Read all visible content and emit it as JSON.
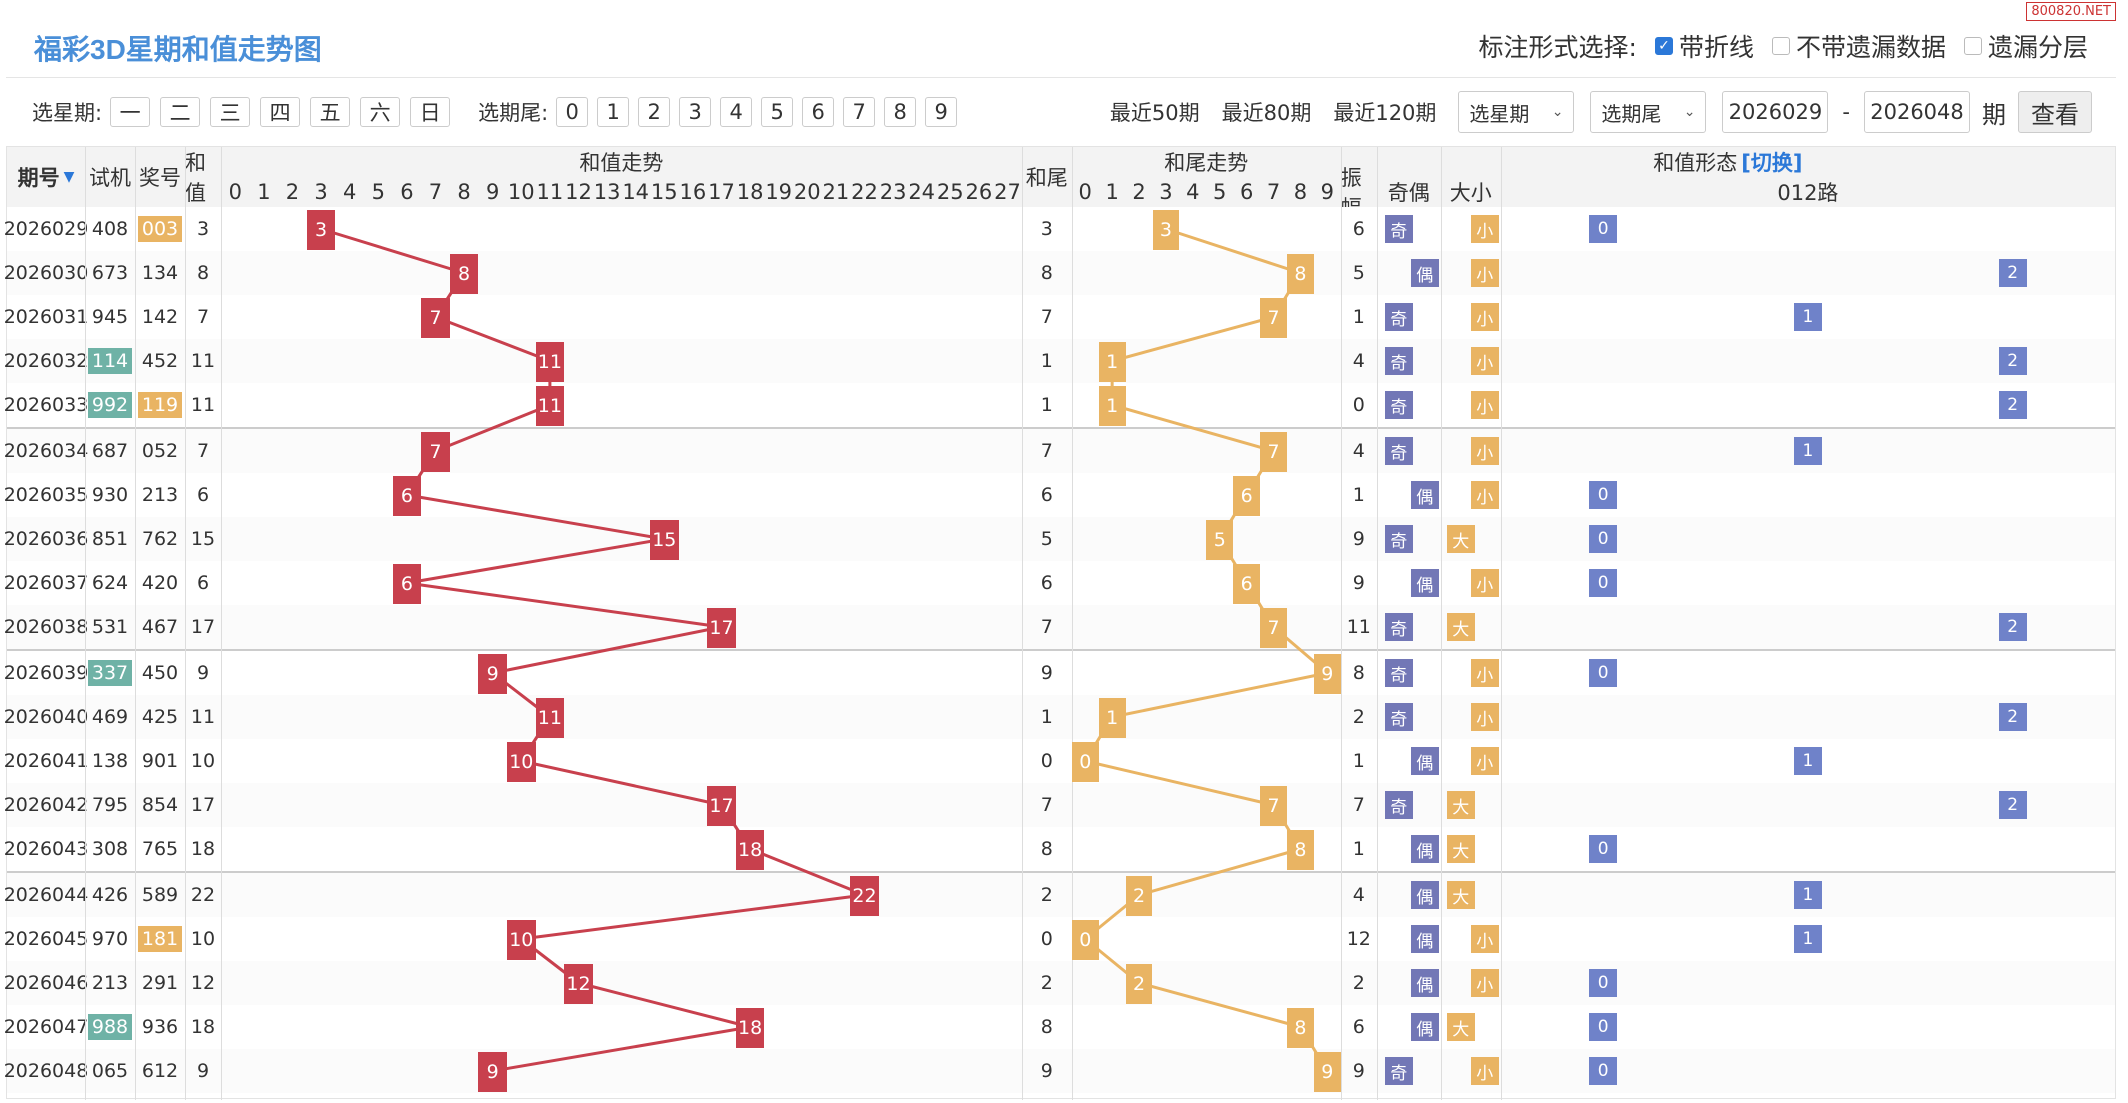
{
  "page": {
    "title": "福彩3D星期和值走势图",
    "watermark": "800820.NET"
  },
  "options": {
    "label": "标注形式选择:",
    "items": [
      {
        "label": "带折线",
        "checked": true
      },
      {
        "label": "不带遗漏数据",
        "checked": false
      },
      {
        "label": "遗漏分层",
        "checked": false
      }
    ]
  },
  "filters": {
    "week_label": "选星期:",
    "weekdays": [
      "一",
      "二",
      "三",
      "四",
      "五",
      "六",
      "日"
    ],
    "tail_label": "选期尾:",
    "tails": [
      "0",
      "1",
      "2",
      "3",
      "4",
      "5",
      "6",
      "7",
      "8",
      "9"
    ],
    "ranges": [
      "最近50期",
      "最近80期",
      "最近120期"
    ],
    "select_week": "选星期",
    "select_tail": "选期尾",
    "from": "2026029",
    "dash": "-",
    "to": "2026048",
    "qi": "期",
    "query": "查看"
  },
  "headers": {
    "issue": "期号",
    "trial": "试机",
    "award": "奖号",
    "sum": "和值",
    "sum_trend": "和值走势",
    "sum_tail": "和尾",
    "tail_trend": "和尾走势",
    "form": "和值形态",
    "switch": "[切换]",
    "amp": "振幅",
    "oddeven": "奇偶",
    "bigsmall": "大小",
    "road": "012路"
  },
  "colors": {
    "sum_hit": "#c8404d",
    "tail_hit": "#e9b463",
    "trial_green": "#6fb2a6",
    "award_orange": "#e9b463",
    "tag_odd": "#7277b6",
    "tag_even": "#7277b6",
    "tag_small": "#e9b463",
    "tag_big": "#e9b463",
    "road": "#6f82c9"
  },
  "chart_data": {
    "type": "table",
    "rows": [
      {
        "issue": "2026029",
        "trial": "408",
        "award": "003",
        "award_hl": true,
        "trial_hl": false,
        "sum": 3,
        "tail": 3,
        "amp": 6,
        "oe": "奇",
        "bs": "小",
        "road": 0
      },
      {
        "issue": "2026030",
        "trial": "673",
        "award": "134",
        "sum": 8,
        "tail": 8,
        "amp": 5,
        "oe": "偶",
        "bs": "小",
        "road": 2
      },
      {
        "issue": "2026031",
        "trial": "945",
        "award": "142",
        "sum": 7,
        "tail": 7,
        "amp": 1,
        "oe": "奇",
        "bs": "小",
        "road": 1
      },
      {
        "issue": "2026032",
        "trial": "114",
        "award": "452",
        "trial_hl": true,
        "sum": 11,
        "tail": 1,
        "amp": 4,
        "oe": "奇",
        "bs": "小",
        "road": 2
      },
      {
        "issue": "2026033",
        "trial": "992",
        "award": "119",
        "trial_hl": true,
        "award_hl": true,
        "sum": 11,
        "tail": 1,
        "amp": 0,
        "oe": "奇",
        "bs": "小",
        "road": 2
      },
      {
        "issue": "2026034",
        "trial": "687",
        "award": "052",
        "sum": 7,
        "tail": 7,
        "amp": 4,
        "oe": "奇",
        "bs": "小",
        "road": 1
      },
      {
        "issue": "2026035",
        "trial": "930",
        "award": "213",
        "sum": 6,
        "tail": 6,
        "amp": 1,
        "oe": "偶",
        "bs": "小",
        "road": 0
      },
      {
        "issue": "2026036",
        "trial": "851",
        "award": "762",
        "sum": 15,
        "tail": 5,
        "amp": 9,
        "oe": "奇",
        "bs": "大",
        "road": 0
      },
      {
        "issue": "2026037",
        "trial": "624",
        "award": "420",
        "sum": 6,
        "tail": 6,
        "amp": 9,
        "oe": "偶",
        "bs": "小",
        "road": 0
      },
      {
        "issue": "2026038",
        "trial": "531",
        "award": "467",
        "sum": 17,
        "tail": 7,
        "amp": 11,
        "oe": "奇",
        "bs": "大",
        "road": 2
      },
      {
        "issue": "2026039",
        "trial": "337",
        "award": "450",
        "trial_hl": true,
        "sum": 9,
        "tail": 9,
        "amp": 8,
        "oe": "奇",
        "bs": "小",
        "road": 0
      },
      {
        "issue": "2026040",
        "trial": "469",
        "award": "425",
        "sum": 11,
        "tail": 1,
        "amp": 2,
        "oe": "奇",
        "bs": "小",
        "road": 2
      },
      {
        "issue": "2026041",
        "trial": "138",
        "award": "901",
        "sum": 10,
        "tail": 0,
        "amp": 1,
        "oe": "偶",
        "bs": "小",
        "road": 1
      },
      {
        "issue": "2026042",
        "trial": "795",
        "award": "854",
        "sum": 17,
        "tail": 7,
        "amp": 7,
        "oe": "奇",
        "bs": "大",
        "road": 2
      },
      {
        "issue": "2026043",
        "trial": "308",
        "award": "765",
        "sum": 18,
        "tail": 8,
        "amp": 1,
        "oe": "偶",
        "bs": "大",
        "road": 0
      },
      {
        "issue": "2026044",
        "trial": "426",
        "award": "589",
        "sum": 22,
        "tail": 2,
        "amp": 4,
        "oe": "偶",
        "bs": "大",
        "road": 1
      },
      {
        "issue": "2026045",
        "trial": "970",
        "award": "181",
        "award_hl": true,
        "sum": 10,
        "tail": 0,
        "amp": 12,
        "oe": "偶",
        "bs": "小",
        "road": 1
      },
      {
        "issue": "2026046",
        "trial": "213",
        "award": "291",
        "sum": 12,
        "tail": 2,
        "amp": 2,
        "oe": "偶",
        "bs": "小",
        "road": 0
      },
      {
        "issue": "2026047",
        "trial": "988",
        "award": "936",
        "trial_hl": true,
        "sum": 18,
        "tail": 8,
        "amp": 6,
        "oe": "偶",
        "bs": "大",
        "road": 0
      },
      {
        "issue": "2026048",
        "trial": "065",
        "award": "612",
        "sum": 9,
        "tail": 9,
        "amp": 9,
        "oe": "奇",
        "bs": "小",
        "road": 0
      }
    ]
  }
}
